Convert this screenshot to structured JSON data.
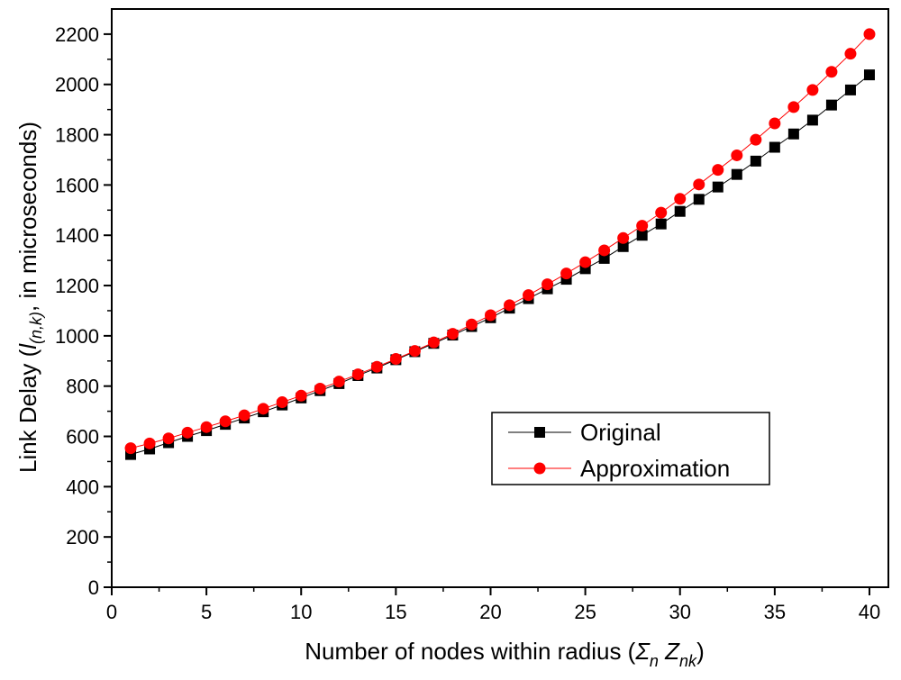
{
  "chart_data": {
    "type": "line",
    "title": "",
    "xlabel": "Number of nodes within radius (Σn Znk)",
    "ylabel": "Link Delay (l(n,k), in microseconds)",
    "xlim": [
      0,
      41
    ],
    "ylim": [
      0,
      2300
    ],
    "x_ticks": [
      0,
      5,
      10,
      15,
      20,
      25,
      30,
      35,
      40
    ],
    "y_ticks": [
      0,
      200,
      400,
      600,
      800,
      1000,
      1200,
      1400,
      1600,
      1800,
      2000,
      2200
    ],
    "grid": false,
    "legend_position": "center-right",
    "x": [
      1,
      2,
      3,
      4,
      5,
      6,
      7,
      8,
      9,
      10,
      11,
      12,
      13,
      14,
      15,
      16,
      17,
      18,
      19,
      20,
      21,
      22,
      23,
      24,
      25,
      26,
      27,
      28,
      29,
      30,
      31,
      32,
      33,
      34,
      35,
      36,
      37,
      38,
      39,
      40
    ],
    "series": [
      {
        "name": "Original",
        "marker": "square",
        "color": "#000000",
        "values": [
          528,
          550,
          575,
          600,
          623,
          648,
          673,
          698,
          725,
          753,
          782,
          810,
          842,
          872,
          905,
          937,
          970,
          1003,
          1037,
          1072,
          1110,
          1148,
          1187,
          1225,
          1267,
          1308,
          1355,
          1400,
          1445,
          1495,
          1543,
          1592,
          1642,
          1695,
          1750,
          1803,
          1858,
          1918,
          1978,
          2038
        ]
      },
      {
        "name": "Approximation",
        "marker": "circle",
        "color": "#ff0000",
        "values": [
          553,
          572,
          592,
          615,
          637,
          660,
          684,
          710,
          736,
          762,
          790,
          818,
          847,
          877,
          908,
          940,
          974,
          1008,
          1045,
          1082,
          1122,
          1162,
          1205,
          1248,
          1293,
          1340,
          1389,
          1438,
          1490,
          1545,
          1602,
          1660,
          1718,
          1780,
          1845,
          1910,
          1978,
          2050,
          2122,
          2200
        ]
      }
    ]
  }
}
